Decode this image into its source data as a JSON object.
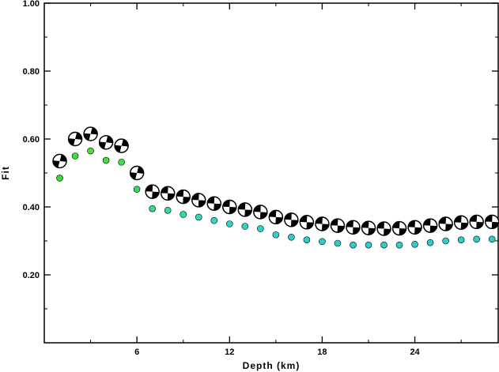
{
  "chart_data": {
    "type": "scatter",
    "title": "",
    "xlabel": "Depth (km)",
    "ylabel": "Fit",
    "xlim": [
      0,
      29.4
    ],
    "ylim": [
      0.0,
      1.0
    ],
    "xticks": [
      6,
      12,
      18,
      24
    ],
    "yticks": [
      0.2,
      0.4,
      0.6,
      0.8,
      1.0
    ],
    "ytick_labels": [
      "0.20",
      "0.40",
      "0.60",
      "0.80",
      "1.00"
    ],
    "grid": false,
    "legend": "none",
    "series": [
      {
        "marker": "beachball",
        "x": [
          1,
          2,
          3,
          4,
          5,
          6,
          7,
          8,
          9,
          10,
          11,
          12,
          13,
          14,
          15,
          16,
          17,
          18,
          19,
          20,
          21,
          22,
          23,
          24,
          25,
          26,
          27,
          28,
          29
        ],
        "y": [
          0.535,
          0.6,
          0.615,
          0.59,
          0.58,
          0.5,
          0.445,
          0.44,
          0.43,
          0.42,
          0.41,
          0.4,
          0.392,
          0.385,
          0.37,
          0.362,
          0.355,
          0.35,
          0.345,
          0.34,
          0.338,
          0.336,
          0.337,
          0.34,
          0.345,
          0.35,
          0.354,
          0.356,
          0.356
        ]
      },
      {
        "marker": "dot",
        "x": [
          1,
          2,
          3,
          4,
          5,
          6,
          7,
          8,
          9,
          10,
          11,
          12,
          13,
          14,
          15,
          16,
          17,
          18,
          19,
          20,
          21,
          22,
          23,
          24,
          25,
          26,
          27,
          28,
          29
        ],
        "y": [
          0.485,
          0.55,
          0.565,
          0.537,
          0.532,
          0.452,
          0.395,
          0.39,
          0.378,
          0.37,
          0.36,
          0.35,
          0.343,
          0.336,
          0.318,
          0.311,
          0.303,
          0.298,
          0.293,
          0.288,
          0.288,
          0.288,
          0.288,
          0.29,
          0.295,
          0.3,
          0.303,
          0.305,
          0.305
        ],
        "colors": [
          "#3ad93a",
          "#40dc3a",
          "#52dc3a",
          "#46dc46",
          "#40dc52",
          "#32dc60",
          "#32dc88",
          "#30dc98",
          "#30dca8",
          "#30dcb8",
          "#30d8c0",
          "#30d4c6",
          "#30d4c6",
          "#30d4c6",
          "#30d0cc",
          "#30cccc",
          "#30cccc",
          "#30cccc",
          "#30cccc",
          "#30cccc",
          "#30cccc",
          "#30cccc",
          "#30cccc",
          "#30cccc",
          "#30cccc",
          "#30cccc",
          "#30cccc",
          "#30cccc",
          "#30cccc"
        ]
      }
    ]
  }
}
